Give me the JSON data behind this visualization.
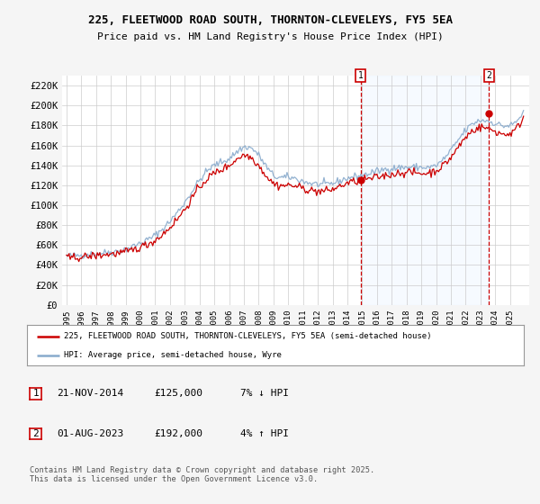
{
  "title": "225, FLEETWOOD ROAD SOUTH, THORNTON-CLEVELEYS, FY5 5EA",
  "subtitle": "Price paid vs. HM Land Registry's House Price Index (HPI)",
  "ylim": [
    0,
    230000
  ],
  "xlim_left": 1994.7,
  "xlim_right": 2026.3,
  "yticks": [
    0,
    20000,
    40000,
    60000,
    80000,
    100000,
    120000,
    140000,
    160000,
    180000,
    200000,
    220000
  ],
  "ytick_labels": [
    "£0",
    "£20K",
    "£40K",
    "£60K",
    "£80K",
    "£100K",
    "£120K",
    "£140K",
    "£160K",
    "£180K",
    "£200K",
    "£220K"
  ],
  "background_color": "#f5f5f5",
  "plot_bg_color": "#ffffff",
  "grid_color": "#cccccc",
  "red_color": "#cc0000",
  "blue_color": "#88aacc",
  "shade_color": "#ddeeff",
  "transaction1": {
    "date": "21-NOV-2014",
    "price": 125000,
    "hpi_diff": "7% ↓ HPI",
    "marker": "1",
    "x_year": 2014.89
  },
  "transaction2": {
    "date": "01-AUG-2023",
    "price": 192000,
    "hpi_diff": "4% ↑ HPI",
    "marker": "2",
    "x_year": 2023.58
  },
  "legend_line1": "225, FLEETWOOD ROAD SOUTH, THORNTON-CLEVELEYS, FY5 5EA (semi-detached house)",
  "legend_line2": "HPI: Average price, semi-detached house, Wyre",
  "footnote": "Contains HM Land Registry data © Crown copyright and database right 2025.\nThis data is licensed under the Open Government Licence v3.0."
}
